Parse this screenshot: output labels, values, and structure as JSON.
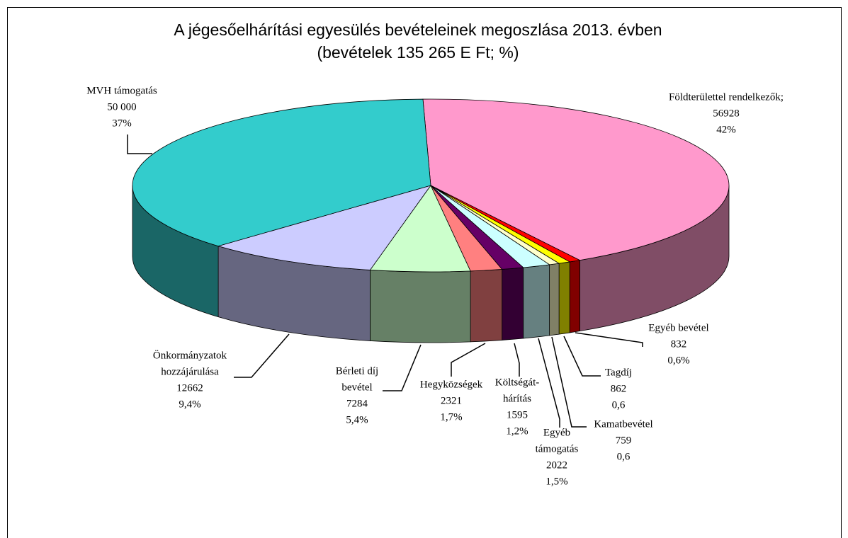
{
  "chart_data": {
    "type": "pie3d",
    "title": "A jégesőelhárítási egyesülés bevételeinek megoszlása 2013. évben",
    "subtitle": "(bevételek 135 265 E Ft; %)",
    "categories": [
      [
        "Földterülettel rendelkezők;"
      ],
      [
        "Egyéb bevétel"
      ],
      [
        "Tagdíj"
      ],
      [
        "Kamatbevétel"
      ],
      [
        "Egyéb",
        "támogatás"
      ],
      [
        "Költségát-",
        "hárítás"
      ],
      [
        "Hegyközségek"
      ],
      [
        "Bérleti díj",
        "bevétel"
      ],
      [
        "Önkormányzatok",
        "hozzájárulása"
      ],
      [
        "MVH támogatás"
      ]
    ],
    "values": [
      56928,
      832,
      862,
      759,
      2022,
      1595,
      2321,
      7284,
      12662,
      50000
    ],
    "value_labels": [
      "56928",
      "832",
      "862",
      "759",
      "2022",
      "1595",
      "2321",
      "7284",
      "12662",
      "50 000"
    ],
    "percentages": [
      42,
      0.6,
      0.6,
      0.6,
      1.5,
      1.2,
      1.7,
      5.4,
      9.4,
      37
    ],
    "percentage_labels": [
      "42%",
      "0,6%",
      "0,6",
      "0,6",
      "1,5%",
      "1,2%",
      "1,7%",
      "5,4%",
      "9,4%",
      "37%"
    ],
    "colors": [
      "#ff99cc",
      "#ff0000",
      "#ffff00",
      "#ffffcc",
      "#ccffff",
      "#660066",
      "#ff8080",
      "#ccffcc",
      "#ccccff",
      "#33cccc"
    ]
  }
}
